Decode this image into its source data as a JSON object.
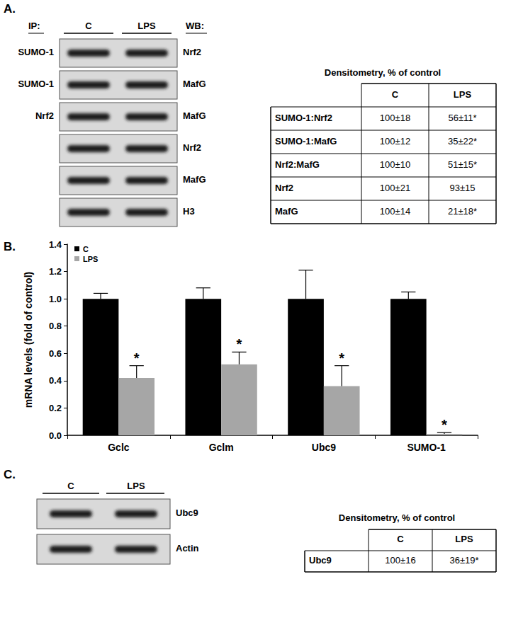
{
  "panel_a": {
    "label": "A.",
    "ip_header": "IP:",
    "wb_header": "WB:",
    "lanes": [
      "C",
      "LPS"
    ],
    "blots": [
      {
        "ip": "SUMO-1",
        "wb": "Nrf2"
      },
      {
        "ip": "SUMO-1",
        "wb": "MafG"
      },
      {
        "ip": "Nrf2",
        "wb": "MafG"
      },
      {
        "wb": "Nrf2"
      },
      {
        "wb": "MafG"
      },
      {
        "wb": "H3"
      }
    ],
    "table": {
      "title": "Densitometry, % of control",
      "columns": [
        "C",
        "LPS"
      ],
      "rows": [
        [
          "SUMO-1:Nrf2",
          "100±18",
          "56±11*"
        ],
        [
          "SUMO-1:MafG",
          "100±12",
          "35±22*"
        ],
        [
          "Nrf2:MafG",
          "100±10",
          "51±15*"
        ],
        [
          "Nrf2",
          "100±21",
          "93±15"
        ],
        [
          "MafG",
          "100±14",
          "21±18*"
        ]
      ]
    }
  },
  "chart_data": {
    "type": "bar",
    "panel_label": "B.",
    "y_label": "mRNA levels (fold of control)",
    "categories": [
      "Gclc",
      "Gclm",
      "Ubc9",
      "SUMO-1"
    ],
    "series": [
      {
        "name": "C",
        "color": "#000000",
        "values": [
          1.0,
          1.0,
          1.0,
          1.0
        ],
        "errors": [
          0.04,
          0.08,
          0.21,
          0.05
        ]
      },
      {
        "name": "LPS",
        "color": "#a6a6a6",
        "values": [
          0.42,
          0.52,
          0.36,
          0.01
        ],
        "errors": [
          0.09,
          0.09,
          0.15,
          0.01
        ],
        "significance": [
          "*",
          "*",
          "*",
          "*"
        ]
      }
    ],
    "ylim": [
      0,
      1.4
    ],
    "yticks": [
      {
        "value": 0,
        "label": "0.0"
      },
      {
        "value": 0.2,
        "label": "0.2"
      },
      {
        "value": 0.4,
        "label": "0.4"
      },
      {
        "value": 0.6,
        "label": "0.6"
      },
      {
        "value": 0.8,
        "label": "0.8"
      },
      {
        "value": 1.0,
        "label": "1.0"
      },
      {
        "value": 1.2,
        "label": "1.2"
      },
      {
        "value": 1.4,
        "label": "1.4"
      }
    ],
    "grid": false,
    "legend": "top-left"
  },
  "panel_c": {
    "label": "C.",
    "lanes": [
      "C",
      "LPS"
    ],
    "blots": [
      {
        "wb": "Ubc9"
      },
      {
        "wb": "Actin"
      }
    ],
    "table": {
      "title": "Densitometry, % of control",
      "columns": [
        "C",
        "LPS"
      ],
      "rows": [
        [
          "Ubc9",
          "100±16",
          "36±19*"
        ]
      ]
    }
  }
}
